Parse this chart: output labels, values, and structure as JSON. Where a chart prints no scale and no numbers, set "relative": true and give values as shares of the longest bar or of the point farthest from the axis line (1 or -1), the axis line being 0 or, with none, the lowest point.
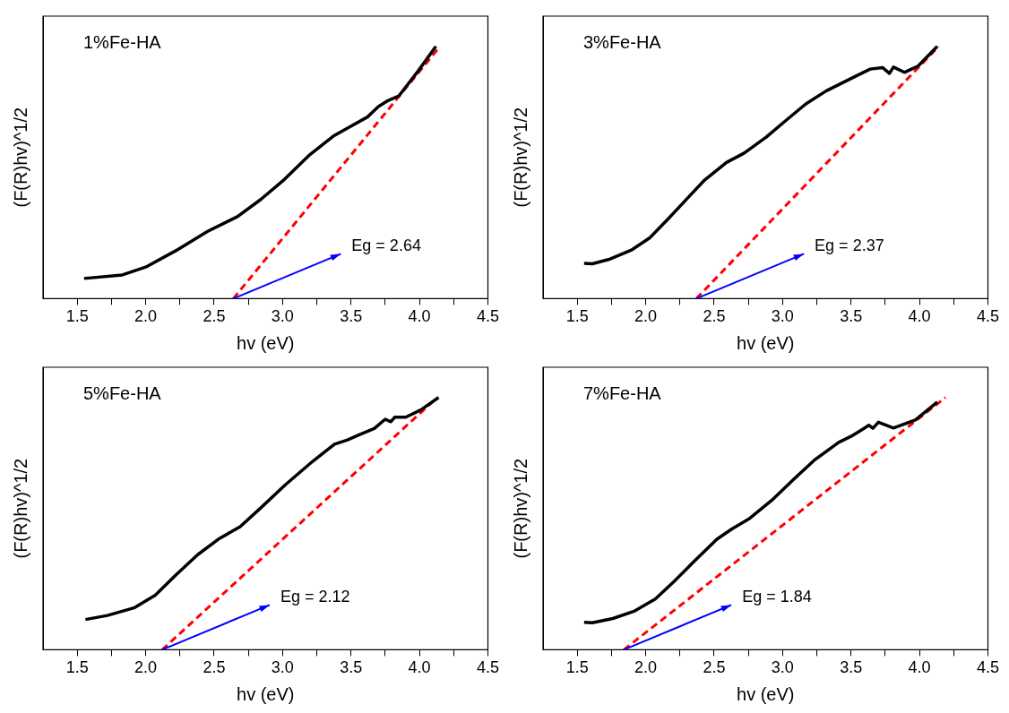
{
  "chart_data": [
    {
      "type": "line",
      "title": "1%Fe-HA",
      "xlabel": "hv (eV)",
      "ylabel": "(F(R)hv)^1/2",
      "relative": true,
      "grid": false,
      "legend": false,
      "marker": "none",
      "xlim": [
        1.25,
        4.5
      ],
      "xticks": [
        1.5,
        {
          "value": 1.75,
          "label": null
        },
        {
          "value": 2,
          "label": "2.0"
        },
        {
          "value": 2.25,
          "label": null
        },
        2.5,
        {
          "value": 2.75,
          "label": null
        },
        {
          "value": 3,
          "label": "3.0"
        },
        {
          "value": 3.25,
          "label": null
        },
        3.5,
        {
          "value": 3.75,
          "label": null
        },
        {
          "value": 4,
          "label": "4.0"
        },
        {
          "value": 4.25,
          "label": null
        },
        4.5
      ],
      "annotations": [
        {
          "text": "Eg = 2.64",
          "x": 2.64,
          "y": 0
        }
      ],
      "series": [
        {
          "color": "#000000",
          "line_style": "solid",
          "x": [
            1.55,
            1.83,
            2.0,
            2.22,
            2.45,
            2.67,
            2.84,
            3.0,
            3.2,
            3.37,
            3.51,
            3.62,
            3.7,
            3.77,
            3.85,
            3.99,
            4.12
          ],
          "values": [
            0.08,
            0.094,
            0.125,
            0.19,
            0.266,
            0.325,
            0.393,
            0.466,
            0.571,
            0.644,
            0.687,
            0.72,
            0.761,
            0.785,
            0.804,
            0.902,
            1.0
          ]
        },
        {
          "color": "#ff0000",
          "line_style": "dashed",
          "x": [
            2.64,
            4.15
          ],
          "values": [
            0,
            1.0
          ]
        }
      ]
    },
    {
      "type": "line",
      "title": "3%Fe-HA",
      "xlabel": "hv (eV)",
      "ylabel": "(F(R)hv)^1/2",
      "relative": true,
      "grid": false,
      "legend": false,
      "marker": "none",
      "xlim": [
        1.25,
        4.5
      ],
      "xticks": [
        1.5,
        {
          "value": 1.75,
          "label": null
        },
        {
          "value": 2,
          "label": "2.0"
        },
        {
          "value": 2.25,
          "label": null
        },
        2.5,
        {
          "value": 2.75,
          "label": null
        },
        {
          "value": 3,
          "label": "3.0"
        },
        {
          "value": 3.25,
          "label": null
        },
        3.5,
        {
          "value": 3.75,
          "label": null
        },
        {
          "value": 4,
          "label": "4.0"
        },
        {
          "value": 4.25,
          "label": null
        },
        4.5
      ],
      "annotations": [
        {
          "text": "Eg = 2.37",
          "x": 2.37,
          "y": 0
        }
      ],
      "series": [
        {
          "color": "#000000",
          "line_style": "solid",
          "x": [
            1.55,
            1.61,
            1.74,
            1.9,
            2.03,
            2.16,
            2.3,
            2.43,
            2.59,
            2.72,
            2.88,
            3.03,
            3.17,
            3.32,
            3.52,
            3.64,
            3.73,
            3.78,
            3.81,
            3.89,
            3.99,
            4.13
          ],
          "values": [
            0.14,
            0.138,
            0.157,
            0.194,
            0.241,
            0.314,
            0.395,
            0.47,
            0.54,
            0.577,
            0.64,
            0.709,
            0.772,
            0.824,
            0.878,
            0.91,
            0.916,
            0.893,
            0.918,
            0.897,
            0.922,
            1.0
          ]
        },
        {
          "color": "#ff0000",
          "line_style": "dashed",
          "x": [
            2.37,
            4.14
          ],
          "values": [
            0,
            1.0
          ]
        }
      ]
    },
    {
      "type": "line",
      "title": "5%Fe-HA",
      "xlabel": "hv (eV)",
      "ylabel": "(F(R)hv)^1/2",
      "relative": true,
      "grid": false,
      "legend": false,
      "marker": "none",
      "xlim": [
        1.25,
        4.5
      ],
      "xticks": [
        1.5,
        {
          "value": 1.75,
          "label": null
        },
        {
          "value": 2,
          "label": "2.0"
        },
        {
          "value": 2.25,
          "label": null
        },
        2.5,
        {
          "value": 2.75,
          "label": null
        },
        {
          "value": 3,
          "label": "3.0"
        },
        {
          "value": 3.25,
          "label": null
        },
        3.5,
        {
          "value": 3.75,
          "label": null
        },
        {
          "value": 4,
          "label": "4.0"
        },
        {
          "value": 4.25,
          "label": null
        },
        4.5
      ],
      "annotations": [
        {
          "text": "Eg = 2.12",
          "x": 2.12,
          "y": 0
        }
      ],
      "series": [
        {
          "color": "#000000",
          "line_style": "solid",
          "x": [
            1.56,
            1.72,
            1.92,
            2.07,
            2.22,
            2.38,
            2.53,
            2.69,
            2.84,
            3.02,
            3.22,
            3.38,
            3.47,
            3.56,
            3.67,
            3.75,
            3.79,
            3.82,
            3.9,
            4.01,
            4.14
          ],
          "values": [
            0.12,
            0.136,
            0.167,
            0.216,
            0.296,
            0.377,
            0.438,
            0.488,
            0.562,
            0.654,
            0.747,
            0.815,
            0.831,
            0.852,
            0.877,
            0.914,
            0.904,
            0.922,
            0.922,
            0.951,
            1.0
          ]
        },
        {
          "color": "#ff0000",
          "line_style": "dashed",
          "x": [
            2.12,
            4.13
          ],
          "values": [
            0,
            1.0
          ]
        }
      ]
    },
    {
      "type": "line",
      "title": "7%Fe-HA",
      "xlabel": "hv (eV)",
      "ylabel": "(F(R)hv)^1/2",
      "relative": true,
      "grid": false,
      "legend": false,
      "marker": "none",
      "xlim": [
        1.25,
        4.5
      ],
      "xticks": [
        1.5,
        {
          "value": 1.75,
          "label": null
        },
        {
          "value": 2,
          "label": "2.0"
        },
        {
          "value": 2.25,
          "label": null
        },
        2.5,
        {
          "value": 2.75,
          "label": null
        },
        {
          "value": 3,
          "label": "3.0"
        },
        {
          "value": 3.25,
          "label": null
        },
        3.5,
        {
          "value": 3.75,
          "label": null
        },
        {
          "value": 4,
          "label": "4.0"
        },
        {
          "value": 4.25,
          "label": null
        },
        4.5
      ],
      "annotations": [
        {
          "text": "Eg = 1.84",
          "x": 1.84,
          "y": 0
        }
      ],
      "series": [
        {
          "color": "#000000",
          "line_style": "solid",
          "x": [
            1.55,
            1.61,
            1.76,
            1.92,
            2.07,
            2.21,
            2.34,
            2.52,
            2.63,
            2.76,
            2.92,
            3.08,
            3.23,
            3.41,
            3.5,
            3.59,
            3.63,
            3.66,
            3.7,
            3.81,
            3.97,
            4.13
          ],
          "values": [
            0.109,
            0.107,
            0.124,
            0.154,
            0.201,
            0.272,
            0.343,
            0.438,
            0.479,
            0.521,
            0.592,
            0.675,
            0.751,
            0.822,
            0.846,
            0.876,
            0.89,
            0.878,
            0.902,
            0.879,
            0.911,
            0.982
          ]
        },
        {
          "color": "#ff0000",
          "line_style": "dashed",
          "x": [
            1.84,
            4.19
          ],
          "values": [
            0,
            1.0
          ]
        }
      ]
    }
  ]
}
